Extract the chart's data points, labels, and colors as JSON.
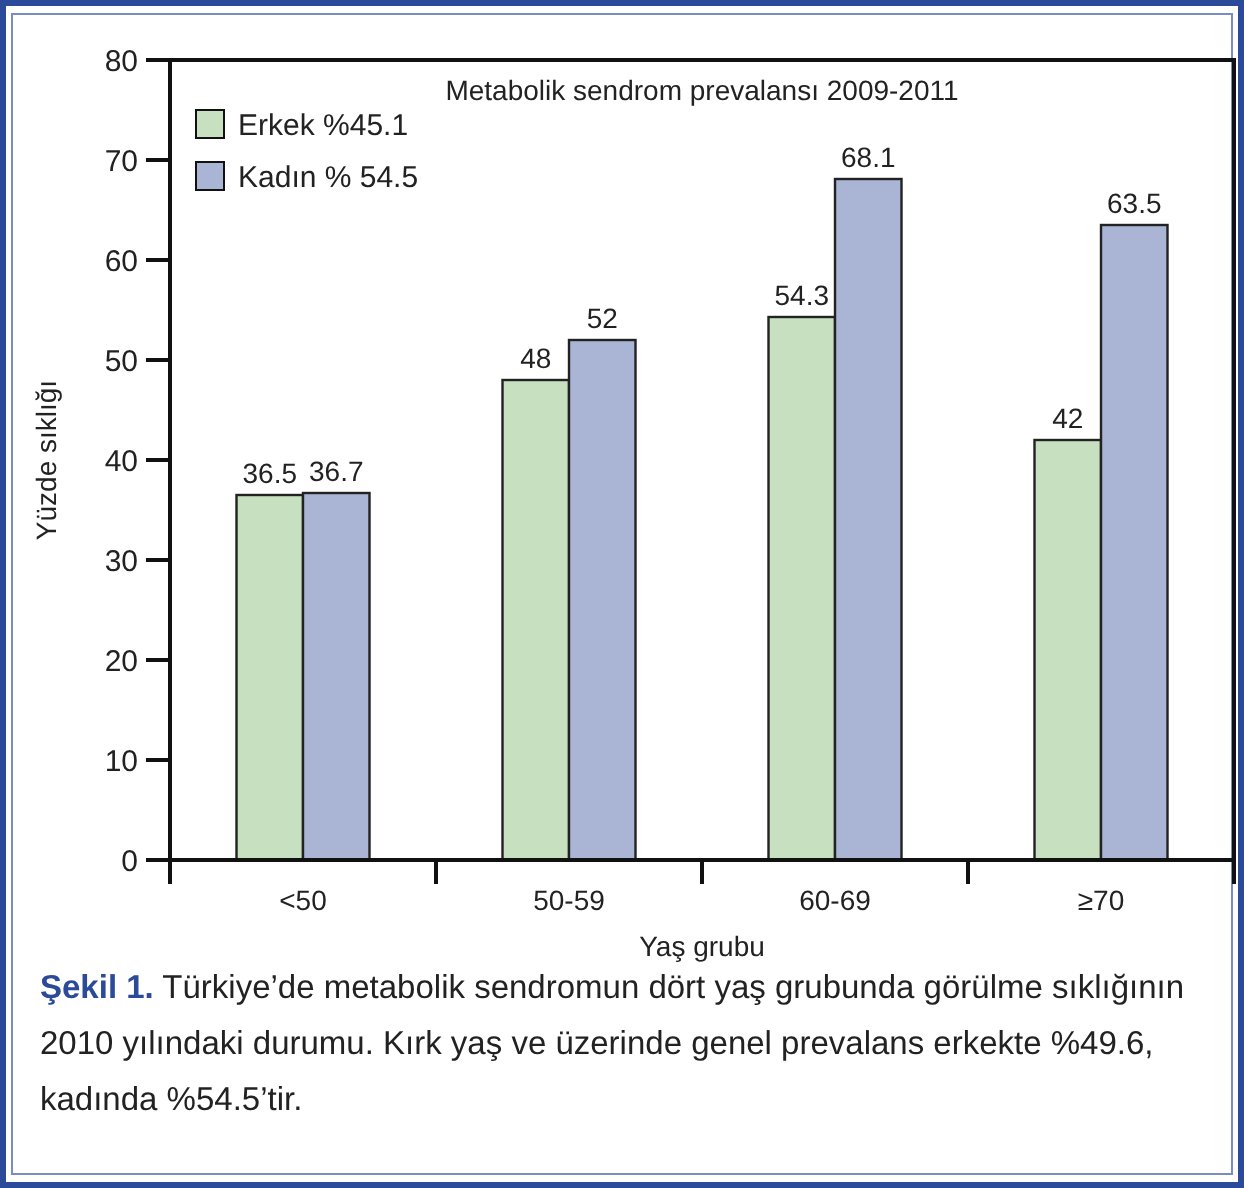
{
  "chart_data": {
    "type": "bar",
    "title": "Metabolik sendrom prevalansı 2009-2011",
    "xlabel": "Yaş grubu",
    "ylabel": "Yüzde sıklığı",
    "categories": [
      "<50",
      "50-59",
      "60-69",
      "≥70"
    ],
    "series": [
      {
        "name": "Erkek %45.1",
        "color": "#c6e0c0",
        "values": [
          36.5,
          48,
          54.3,
          42
        ]
      },
      {
        "name": "Kadın % 54.5",
        "color": "#aab4d4",
        "values": [
          36.7,
          52,
          68.1,
          63.5
        ]
      }
    ],
    "ylim": [
      0,
      80
    ],
    "yticks": [
      0,
      10,
      20,
      30,
      40,
      50,
      60,
      70,
      80
    ],
    "data_labels": true,
    "legend": "top left",
    "grid": false,
    "annotations": [
      "Şekil 1.",
      "Türkiye’de metabolik sendromun dört yaş grubunda görülme sıklığının 2010 yılındaki durumu. Kırk yaş ve üzerinde genel prevalans erkekte %49.6, kadında %54.5’tir."
    ]
  }
}
